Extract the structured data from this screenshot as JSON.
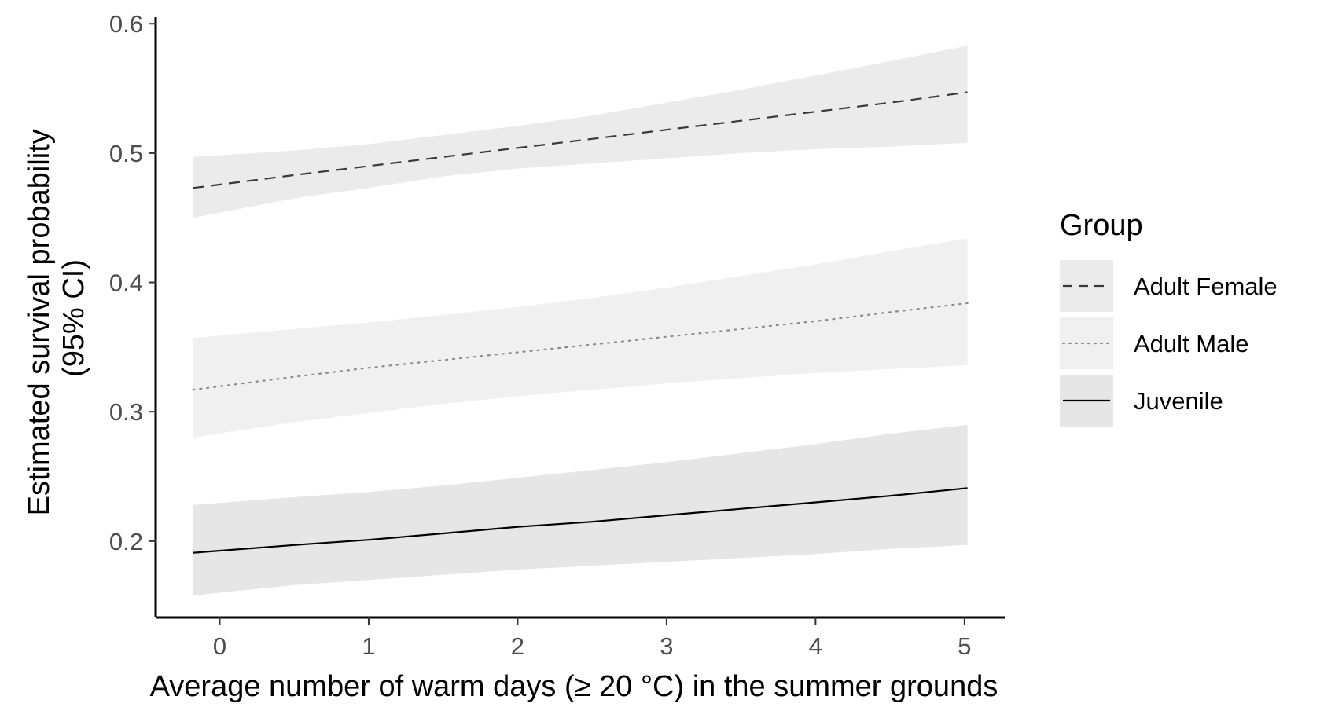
{
  "chart_data": {
    "type": "line",
    "xlabel": "Average number of warm days (≥ 20 °C) in the summer grounds",
    "ylabel_lines": [
      "Estimated survival probability",
      "(95% CI)"
    ],
    "xlim": [
      -0.43,
      5.27
    ],
    "ylim": [
      0.141,
      0.605
    ],
    "x_ticks": [
      0,
      1,
      2,
      3,
      4,
      5
    ],
    "y_ticks": [
      0.2,
      0.3,
      0.4,
      0.5,
      0.6
    ],
    "x_tick_labels": [
      "0",
      "1",
      "2",
      "3",
      "4",
      "5"
    ],
    "y_tick_labels": [
      "0.2",
      "0.3",
      "0.4",
      "0.5",
      "0.6"
    ],
    "grid": false,
    "legend": {
      "title": "Group",
      "position": "right"
    },
    "series": [
      {
        "name": "Adult Female",
        "line_style": "dashed",
        "line_color": "#3a3a3a",
        "band_color": "#ebebeb",
        "x": [
          -0.18,
          0.5,
          1.0,
          1.5,
          2.0,
          2.5,
          3.0,
          3.5,
          4.0,
          4.5,
          5.02
        ],
        "y": [
          0.473,
          0.483,
          0.49,
          0.497,
          0.504,
          0.511,
          0.518,
          0.525,
          0.532,
          0.539,
          0.547
        ],
        "lower": [
          0.45,
          0.465,
          0.473,
          0.482,
          0.488,
          0.492,
          0.496,
          0.5,
          0.503,
          0.505,
          0.508
        ],
        "upper": [
          0.497,
          0.502,
          0.507,
          0.514,
          0.521,
          0.529,
          0.539,
          0.549,
          0.56,
          0.571,
          0.583
        ]
      },
      {
        "name": "Adult Male",
        "line_style": "dotted",
        "line_color": "#8a8a8a",
        "band_color": "#f0f0f0",
        "x": [
          -0.18,
          0.5,
          1.0,
          1.5,
          2.0,
          2.5,
          3.0,
          3.5,
          4.0,
          4.5,
          5.02
        ],
        "y": [
          0.317,
          0.327,
          0.334,
          0.34,
          0.346,
          0.352,
          0.358,
          0.364,
          0.37,
          0.377,
          0.384
        ],
        "lower": [
          0.28,
          0.292,
          0.299,
          0.306,
          0.312,
          0.317,
          0.322,
          0.326,
          0.33,
          0.333,
          0.336
        ],
        "upper": [
          0.357,
          0.364,
          0.369,
          0.375,
          0.381,
          0.388,
          0.396,
          0.405,
          0.414,
          0.424,
          0.434
        ]
      },
      {
        "name": "Juvenile",
        "line_style": "solid",
        "line_color": "#000000",
        "band_color": "#e6e6e6",
        "x": [
          -0.18,
          0.5,
          1.0,
          1.5,
          2.0,
          2.5,
          3.0,
          3.5,
          4.0,
          4.5,
          5.02
        ],
        "y": [
          0.191,
          0.197,
          0.201,
          0.206,
          0.211,
          0.215,
          0.22,
          0.225,
          0.23,
          0.235,
          0.241
        ],
        "lower": [
          0.158,
          0.166,
          0.17,
          0.174,
          0.178,
          0.181,
          0.184,
          0.187,
          0.19,
          0.194,
          0.197
        ],
        "upper": [
          0.228,
          0.234,
          0.238,
          0.243,
          0.249,
          0.255,
          0.261,
          0.268,
          0.275,
          0.283,
          0.29
        ]
      }
    ]
  }
}
